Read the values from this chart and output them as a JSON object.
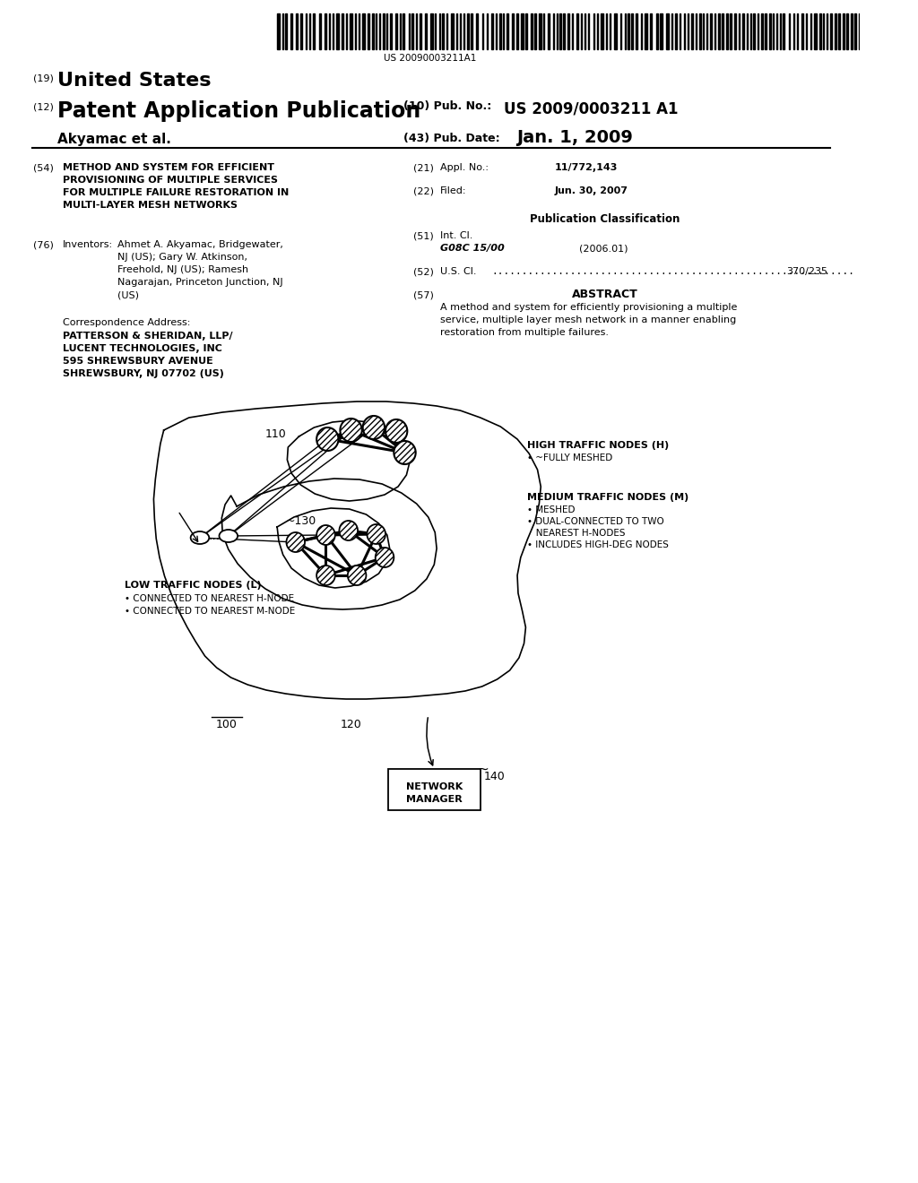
{
  "bg_color": "#ffffff",
  "barcode_text": "US 20090003211A1",
  "header_19_text": "United States",
  "header_12_text": "Patent Application Publication",
  "header_10_label": "(10) Pub. No.:",
  "header_10_val": "US 2009/0003211 A1",
  "header_akyamac": "Akyamac et al.",
  "header_43_label": "(43) Pub. Date:",
  "header_43_val": "Jan. 1, 2009",
  "field_54_title": "METHOD AND SYSTEM FOR EFFICIENT\nPROVISIONING OF MULTIPLE SERVICES\nFOR MULTIPLE FAILURE RESTORATION IN\nMULTI-LAYER MESH NETWORKS",
  "field_76_val": "Ahmet A. Akyamac, Bridgewater,\nNJ (US); Gary W. Atkinson,\nFreehold, NJ (US); Ramesh\nNagarajan, Princeton Junction, NJ\n(US)",
  "correspondence_val": "PATTERSON & SHERIDAN, LLP/\nLUCENT TECHNOLOGIES, INC\n595 SHREWSBURY AVENUE\nSHREWSBURY, NJ 07702 (US)",
  "field_21_val": "11/772,143",
  "field_22_val": "Jun. 30, 2007",
  "field_51_class": "G08C 15/00",
  "field_51_year": "(2006.01)",
  "field_52_val": "370/235",
  "abstract_text": "A method and system for efficiently provisioning a multiple\nservice, multiple layer mesh network in a manner enabling\nrestoration from multiple failures.",
  "label_100": "100",
  "label_110": "110",
  "label_120": "120",
  "label_130": "~130",
  "label_140": "140",
  "high_traffic_title": "HIGH TRAFFIC NODES (H)",
  "high_traffic_bullet": "• ~FULLY MESHED",
  "medium_traffic_title": "MEDIUM TRAFFIC NODES (M)",
  "medium_traffic_line1": "• MESHED",
  "medium_traffic_line2": "• DUAL-CONNECTED TO TWO",
  "medium_traffic_line3": "   NEAREST H-NODES",
  "medium_traffic_line4": "• INCLUDES HIGH-DEG NODES",
  "low_traffic_title": "LOW TRAFFIC NODES (L)",
  "low_traffic_line1": "• CONNECTED TO NEAREST H-NODE",
  "low_traffic_line2": "• CONNECTED TO NEAREST M-NODE",
  "network_manager_text": "NETWORK\nMANAGER"
}
